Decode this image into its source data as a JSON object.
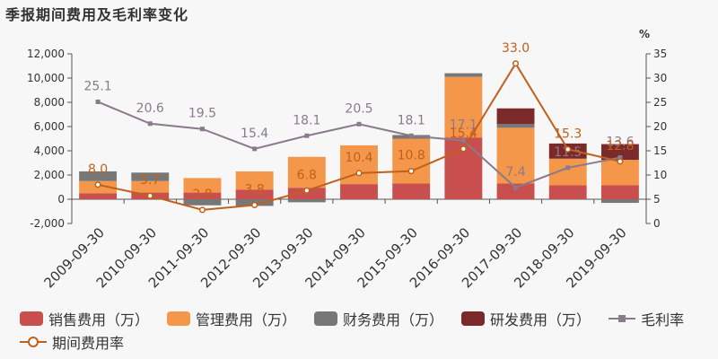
{
  "title": "季报期间费用及毛利率变化",
  "chart_data": {
    "type": "bar",
    "stacked": true,
    "categories": [
      "2009-09-30",
      "2010-09-30",
      "2011-09-30",
      "2012-09-30",
      "2013-09-30",
      "2014-09-30",
      "2015-09-30",
      "2016-09-30",
      "2017-09-30",
      "2018-09-30",
      "2019-09-30"
    ],
    "ylim": [
      -2000,
      12000
    ],
    "yticks": [
      "-2,000",
      "0",
      "2,000",
      "4,000",
      "6,000",
      "8,000",
      "10,000",
      "12,000"
    ],
    "y2lim": [
      0,
      35
    ],
    "y2ticks": [
      "0",
      "5",
      "10",
      "15",
      "20",
      "25",
      "30",
      "35"
    ],
    "y2unit": "%",
    "series": [
      {
        "name": "销售费用（万）",
        "color": "#c94f4f",
        "values": [
          500,
          550,
          550,
          800,
          950,
          1250,
          1300,
          5100,
          1300,
          1150,
          1150
        ]
      },
      {
        "name": "管理费用（万）",
        "color": "#f5974a",
        "values": [
          1000,
          950,
          1200,
          1500,
          2550,
          3200,
          3700,
          5000,
          4600,
          2200,
          2100
        ]
      },
      {
        "name": "财务费用（万）",
        "color": "#777777",
        "values": [
          800,
          700,
          -500,
          -550,
          -250,
          0,
          300,
          300,
          300,
          0,
          -300
        ]
      },
      {
        "name": "研发费用（万）",
        "color": "#7a2a2a",
        "values": [
          0,
          0,
          0,
          0,
          0,
          0,
          0,
          0,
          1300,
          1250,
          1300
        ]
      }
    ],
    "lines": [
      {
        "name": "毛利率",
        "color": "#8a7a8c",
        "marker": "square",
        "values": [
          25.1,
          20.6,
          19.5,
          15.4,
          18.1,
          20.5,
          18.1,
          17.1,
          7.4,
          11.5,
          13.6
        ],
        "labels": [
          "25.1",
          "20.6",
          "19.5",
          "15.4",
          "18.1",
          "20.5",
          "18.1",
          "17.1",
          "7.4",
          "11.5",
          "13.6"
        ]
      },
      {
        "name": "期间费用率",
        "color": "#c0601a",
        "marker": "circle",
        "values": [
          8.0,
          5.7,
          2.8,
          3.8,
          6.8,
          10.4,
          10.8,
          15.4,
          33.0,
          15.3,
          12.8
        ],
        "labels": [
          "8.0",
          "5.7",
          "2.8",
          "3.8",
          "6.8",
          "10.4",
          "10.8",
          "15.4",
          "33.0",
          "15.3",
          "12.8"
        ]
      }
    ],
    "legend_position": "bottom",
    "grid": false
  }
}
